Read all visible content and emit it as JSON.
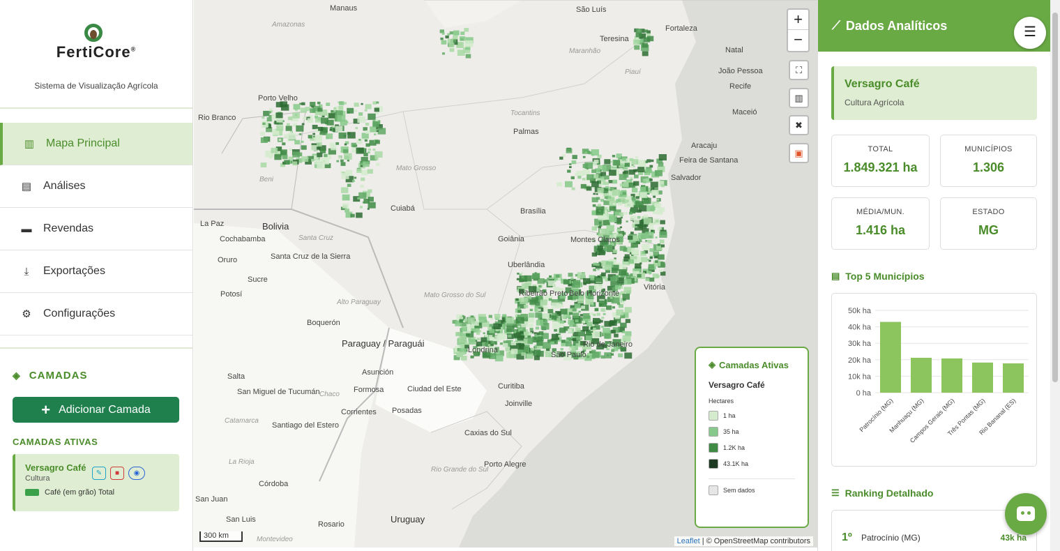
{
  "app": {
    "brand": "FertiCore",
    "brand_mark": "®",
    "tagline": "Sistema de Visualização Agrícola"
  },
  "nav": [
    {
      "label": "Mapa Principal",
      "icon": "map-icon",
      "active": true
    },
    {
      "label": "Análises",
      "icon": "chart-icon"
    },
    {
      "label": "Revendas",
      "icon": "store-icon"
    },
    {
      "label": "Exportações",
      "icon": "download-icon"
    },
    {
      "label": "Configurações",
      "icon": "gear-icon"
    }
  ],
  "layers": {
    "title": "CAMADAS",
    "add_label": "Adicionar Camada",
    "active_title": "CAMADAS ATIVAS",
    "card": {
      "name": "Versagro Café",
      "type": "Cultura",
      "legend": "Café (em grão) Total"
    }
  },
  "map": {
    "labels": [
      "Manaus",
      "São Luís",
      "Fortaleza",
      "Teresina",
      "Natal",
      "João Pessoa",
      "Recife",
      "Maceió",
      "Porto Velho",
      "Rio Branco",
      "Palmas",
      "Aracaju",
      "Feira de Santana",
      "Salvador",
      "Brasília",
      "Goiânia",
      "Cuiabá",
      "Montes Claros",
      "Uberlândia",
      "Ribeirão Preto",
      "Belo Horizonte",
      "Vitória",
      "Rio de Janeiro",
      "São Paulo",
      "Londrina",
      "Curitiba",
      "Joinville",
      "Caxias do Sul",
      "Porto Alegre",
      "La Paz",
      "Bolivia",
      "Cochabamba",
      "Oruro",
      "Santa Cruz de la Sierra",
      "Sucre",
      "Potosí",
      "Paraguay / Paraguái",
      "Asunción",
      "Formosa",
      "Corrientes",
      "Posadas",
      "Ciudad del Este",
      "Salta",
      "San Miguel de Tucumán",
      "Santiago del Estero",
      "Córdoba",
      "Rosario",
      "San Juan",
      "San Luis",
      "Uruguay",
      "Boquerón",
      "Alto Paraguay",
      "Chaco",
      "Catamarca",
      "La Rioja",
      "Mato Grosso",
      "Maranhão",
      "Piauí",
      "Tocantins",
      "Amazonas",
      "Beni",
      "Santa Cruz",
      "Mato Grosso do Sul",
      "Rio Grande do Sul",
      "Montevideo"
    ],
    "scale": "300 km",
    "attribution_link": "Leaflet",
    "attribution_text": "| © OpenStreetMap contributors",
    "zoom_in": "+",
    "zoom_out": "−",
    "buttons": [
      "fullscreen-icon",
      "map-icon",
      "tools-icon",
      "store-icon"
    ]
  },
  "legend": {
    "title": "Camadas Ativas",
    "layer": "Versagro Café",
    "unit": "Hectares",
    "items": [
      {
        "label": "1 ha",
        "color": "#d4ebce"
      },
      {
        "label": "35 ha",
        "color": "#86c98a"
      },
      {
        "label": "1.2K ha",
        "color": "#3f8a45"
      },
      {
        "label": "43.1K ha",
        "color": "#1d3a22"
      }
    ],
    "nodata": "Sem dados"
  },
  "right": {
    "title": "Dados Analíticos",
    "crop_name": "Versagro Café",
    "crop_type": "Cultura Agrícola",
    "stats": [
      {
        "k": "TOTAL",
        "v": "1.849.321 ha"
      },
      {
        "k": "MUNICÍPIOS",
        "v": "1.306"
      },
      {
        "k": "MÉDIA/MUN.",
        "v": "1.416 ha"
      },
      {
        "k": "ESTADO",
        "v": "MG"
      }
    ],
    "top5_title": "Top 5 Municípios",
    "ranking_title": "Ranking Detalhado",
    "rank": {
      "pos": "1º",
      "name": "Patrocínio (MG)",
      "value": "43k ha"
    }
  },
  "chart_data": {
    "type": "bar",
    "categories": [
      "Patrocínio (MG)",
      "Manhuaçu (MG)",
      "Campos Gerais (MG)",
      "Três Pontas (MG)",
      "Rio Bananal (ES)"
    ],
    "values": [
      43000,
      21200,
      20800,
      18300,
      17800
    ],
    "ylim": [
      0,
      50000
    ],
    "yticks": [
      "0 ha",
      "10k ha",
      "20k ha",
      "30k ha",
      "40k ha",
      "50k ha"
    ],
    "color": "#8cc45e"
  }
}
